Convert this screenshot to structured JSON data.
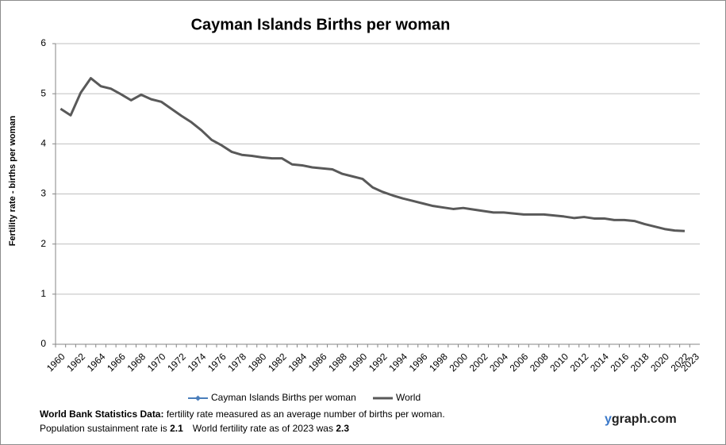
{
  "chart_data": {
    "type": "line",
    "title": "Cayman Islands Births per woman",
    "y_label": "Fertility rate  - births per woman",
    "categories": [
      "1960",
      null,
      "1962",
      null,
      "1964",
      null,
      "1966",
      null,
      "1968",
      null,
      "1970",
      null,
      "1972",
      null,
      "1974",
      null,
      "1976",
      null,
      "1978",
      null,
      "1980",
      null,
      "1982",
      null,
      "1984",
      null,
      "1986",
      null,
      "1988",
      null,
      "1990",
      null,
      "1992",
      null,
      "1994",
      null,
      "1996",
      null,
      "1998",
      null,
      "2000",
      null,
      "2002",
      null,
      "2004",
      null,
      "2006",
      null,
      "2008",
      null,
      "2010",
      null,
      "2012",
      null,
      "2014",
      null,
      "2016",
      null,
      "2018",
      null,
      "2020",
      null,
      "2022",
      "2023"
    ],
    "series": [
      {
        "name": "Cayman Islands Births per woman",
        "color": "#4a7ebb",
        "values": [
          null,
          null,
          null,
          null,
          null,
          null,
          null,
          null,
          null,
          null,
          null,
          null,
          null,
          null,
          null,
          null,
          null,
          null,
          null,
          null,
          null,
          null,
          null,
          null,
          null,
          null,
          null,
          null,
          null,
          null,
          null,
          null,
          null,
          null,
          null,
          null,
          null,
          null,
          null,
          null,
          null,
          null,
          null,
          null,
          null,
          null,
          null,
          null,
          null,
          null,
          null,
          null,
          null,
          null,
          null,
          null,
          null,
          null,
          null,
          null,
          null,
          null,
          null,
          null
        ]
      },
      {
        "name": "World",
        "color": "#595959",
        "values": [
          4.7,
          4.57,
          5.02,
          5.31,
          5.15,
          5.1,
          4.99,
          4.87,
          4.98,
          4.89,
          4.84,
          4.7,
          4.56,
          4.43,
          4.27,
          4.08,
          3.97,
          3.84,
          3.78,
          3.76,
          3.73,
          3.71,
          3.71,
          3.59,
          3.57,
          3.53,
          3.51,
          3.49,
          3.4,
          3.35,
          3.3,
          3.13,
          3.04,
          2.97,
          2.91,
          2.86,
          2.81,
          2.76,
          2.73,
          2.7,
          2.72,
          2.69,
          2.66,
          2.63,
          2.63,
          2.61,
          2.59,
          2.59,
          2.59,
          2.57,
          2.55,
          2.52,
          2.54,
          2.51,
          2.51,
          2.48,
          2.48,
          2.46,
          2.4,
          2.35,
          2.3,
          2.27,
          2.26,
          null
        ]
      }
    ],
    "ylim": [
      0,
      6
    ],
    "yticks": [
      0,
      1,
      2,
      3,
      4,
      5,
      6
    ],
    "grid": true,
    "legend": "bottom"
  },
  "footer": {
    "source_label": "World Bank Statistics Data:",
    "source_text": " fertility rate measured as an average number  of births per woman.",
    "sustainment_label": "Population sustainment rate is ",
    "sustainment_value": "2.1",
    "world_label": "World fertility rate as of 2023 was ",
    "world_value": "2.3",
    "brand_prefix": "y",
    "brand": "graph.com"
  }
}
